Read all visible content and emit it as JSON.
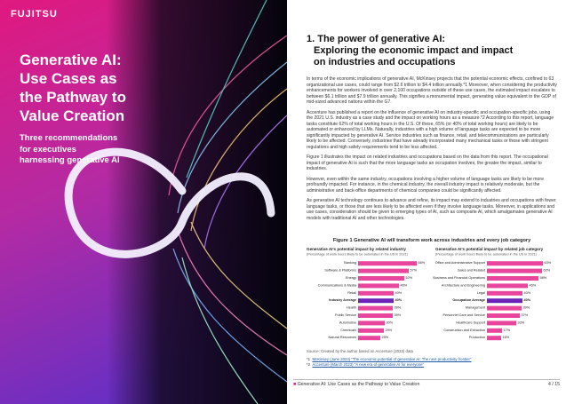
{
  "brand": "FUJITSU",
  "cover": {
    "title_lines": [
      "Generative AI:",
      "Use Cases as",
      "the Pathway to",
      "Value Creation"
    ],
    "subtitle": "Three recommendations for executives harnessing generative AI"
  },
  "section": {
    "heading_lines": [
      "1. The power of generative AI:",
      "Exploring the economic impact and impact",
      "on industries and occupations"
    ],
    "paragraphs": [
      "In terms of the economic implications of generative AI, McKinsey projects that the potential economic effects, confined to 63 organizational use cases, could range from $2.6 trillion to $4.4 trillion annually.*1 Moreover, when considering the productivity enhancements for workers involved in over 2,100 occupations outside of these use cases, the estimated impact escalates to between $6.1 trillion and $7.9 trillion annually. This signifies a monumental impact, generating value equivalent to the GDP of mid-sized advanced nations within the G7.",
      "Accenture has published a report on the influence of generative AI on industry-specific and occupation-specific jobs, using the 2021 U.S. industry as a case study and the impact on working hours as a measure.*2 According to this report, language tasks constitute 62% of total working hours in the U.S. Of these, 65% (or 40% of total working hours) are likely to be automated or enhanced by LLMs. Naturally, industries with a high volume of language tasks are expected to be more significantly impacted by generative AI. Service industries such as finance, retail, and telecommunications are particularly likely to be affected. Conversely, industries that have already incorporated many mechanical tasks or those with stringent regulations and high safety requirements tend to be less affected.",
      "Figure 1 illustrates the impact on related industries and occupations based on the data from this report. The occupational impact of generative AI is such that the more language tasks an occupation involves, the greater the impact, similar to industries.",
      "However, even within the same industry, occupations involving a higher volume of language tasks are likely to be more profoundly impacted. For instance, in the chemical industry, the overall industry impact is relatively moderate, but the administrative and back-office departments of chemical companies could be significantly affected.",
      "As generative AI technology continues to advance and refine, its impact may extend to industries and occupations with fewer language tasks, or those that are less likely to be affected even if they involve language tasks. Moreover, in applications and use cases, consideration should be given to emerging types of AI, such as composite AI, which amalgamates generative AI models with traditional AI and other technologies."
    ]
  },
  "figure": {
    "title": "Figure 1  Generative AI will transform work across industries and every job category",
    "charts": [
      {
        "title": "Generative AI's potential impact by related industry",
        "subtitle": "(Percentage of work hours likely to be automated in the US in 2021)",
        "categories": [
          "Banking",
          "Software & Platforms",
          "Energy",
          "Communications & Media",
          "Retail",
          "Industry Average",
          "Health",
          "Public Service",
          "Automotive",
          "Chemicals",
          "Natural Resources"
        ],
        "values": [
          66,
          57,
          52,
          46,
          40,
          40,
          39,
          39,
          30,
          29,
          25
        ],
        "value_labels": [
          "66%",
          "57%",
          "52%",
          "46%",
          "40%",
          "40%",
          "39%",
          "39%",
          "30%",
          "29%",
          "25%"
        ],
        "color": "#e8459c",
        "highlight_color": "#6a22b8",
        "highlight_index": 5
      },
      {
        "title": "Generative AI's potential impact by related job category",
        "subtitle": "(Percentage of work hours likely to be automated in the US in 2021)",
        "categories": [
          "Office and Administrative Support",
          "Sales and Related",
          "Business and Financial Operations",
          "Architecture and Engineering",
          "Legal",
          "Occupation Average",
          "Management",
          "Personnel Care and Service",
          "Healthcare Support",
          "Construction and Extraction",
          "Production"
        ],
        "values": [
          63,
          62,
          58,
          46,
          40,
          40,
          39,
          37,
          33,
          17,
          16
        ],
        "value_labels": [
          "63%",
          "62%",
          "58%",
          "46%",
          "40%",
          "40%",
          "39%",
          "37%",
          "33%",
          "17%",
          "16%"
        ],
        "color": "#e8459c",
        "highlight_color": "#6a22b8",
        "highlight_index": 5
      }
    ],
    "source": "Source: Created by the author based on Accenture (2023) data"
  },
  "footnotes": [
    {
      "mark": "*1",
      "text": "McKinsey (June 2023) \"The economic potential of generative AI: The next productivity frontier\""
    },
    {
      "mark": "*2",
      "text": "Accenture (March 2023) \"A new era of generative AI for everyone\""
    }
  ],
  "footer": {
    "title": "Generative AI: Use Cases as the Pathway to Value Creation",
    "page": "4 / 15"
  }
}
